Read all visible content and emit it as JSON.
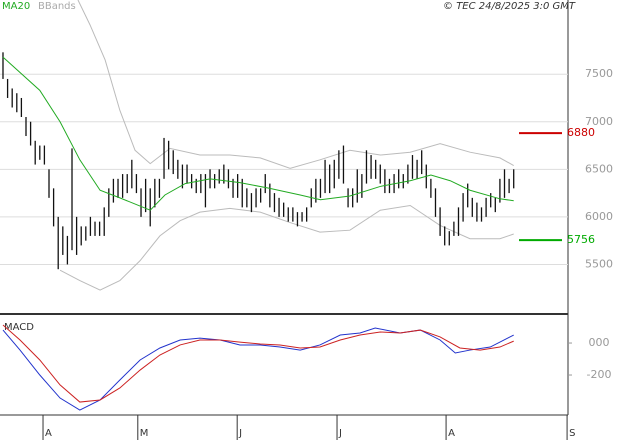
{
  "chart_data": [
    {
      "type": "range",
      "legend": [
        {
          "text": "MA20",
          "color": "#22aa22"
        },
        {
          "text": "BBands",
          "color": "#aaaaaa"
        }
      ],
      "source": "© TEC 24/8/2025 3:0 GMT",
      "xlim": [
        -0.65,
        122.8
      ],
      "ylim": [
        5000,
        8280
      ],
      "yticks": [
        5500,
        6000,
        6500,
        7000,
        7500
      ],
      "grid": true,
      "bar_color": "#111111",
      "highs": [
        7730,
        7450,
        7350,
        7300,
        7250,
        7050,
        7000,
        6800,
        6750,
        6750,
        6500,
        6300,
        6000,
        5900,
        5800,
        6720,
        6000,
        5900,
        5900,
        6000,
        5950,
        5950,
        6100,
        6300,
        6400,
        6400,
        6450,
        6450,
        6600,
        6450,
        6300,
        6400,
        6300,
        6400,
        6400,
        6830,
        6800,
        6700,
        6600,
        6550,
        6550,
        6450,
        6400,
        6450,
        6450,
        6500,
        6450,
        6500,
        6550,
        6500,
        6400,
        6450,
        6400,
        6300,
        6250,
        6300,
        6300,
        6450,
        6350,
        6250,
        6200,
        6150,
        6100,
        6100,
        6050,
        6050,
        6100,
        6300,
        6400,
        6400,
        6600,
        6550,
        6600,
        6700,
        6750,
        6300,
        6300,
        6500,
        6450,
        6700,
        6650,
        6600,
        6550,
        6500,
        6400,
        6450,
        6500,
        6450,
        6550,
        6650,
        6600,
        6700,
        6550,
        6400,
        6300,
        6100,
        5900,
        5850,
        5950,
        6100,
        6250,
        6350,
        6200,
        6150,
        6100,
        6200,
        6250,
        6200,
        6400,
        6500,
        6400,
        6500
      ],
      "lows": [
        7450,
        7250,
        7150,
        7100,
        7050,
        6850,
        6750,
        6550,
        6600,
        6550,
        6200,
        5900,
        5450,
        5600,
        5500,
        5650,
        5600,
        5700,
        5750,
        5800,
        5800,
        5800,
        5800,
        6000,
        6150,
        6200,
        6200,
        6250,
        6300,
        6250,
        6000,
        6050,
        5900,
        6100,
        6200,
        6400,
        6500,
        6450,
        6400,
        6300,
        6350,
        6300,
        6250,
        6250,
        6100,
        6300,
        6300,
        6350,
        6350,
        6300,
        6200,
        6200,
        6100,
        6100,
        6050,
        6100,
        6150,
        6250,
        6100,
        6050,
        6000,
        6000,
        5950,
        5950,
        5900,
        5950,
        5950,
        6100,
        6150,
        6200,
        6250,
        6250,
        6300,
        6400,
        6350,
        6100,
        6100,
        6150,
        6200,
        6350,
        6400,
        6400,
        6350,
        6250,
        6250,
        6250,
        6300,
        6300,
        6350,
        6400,
        6400,
        6450,
        6300,
        6200,
        6000,
        5800,
        5700,
        5700,
        5800,
        5800,
        5950,
        6100,
        6000,
        5950,
        5950,
        6000,
        6100,
        6050,
        6150,
        6200,
        6250,
        6300
      ],
      "series": [
        {
          "name": "MA20",
          "color": "#22aa22",
          "x": [
            0,
            8,
            12.4,
            16.7,
            21.1,
            25.4,
            32,
            35.2,
            39.6,
            45,
            51.5,
            58,
            64.6,
            69,
            75.4,
            82,
            88.5,
            93,
            97.2,
            101.5,
            108,
            111
          ],
          "values": [
            7680,
            7330,
            7000,
            6600,
            6280,
            6200,
            6070,
            6230,
            6350,
            6400,
            6360,
            6300,
            6230,
            6180,
            6220,
            6320,
            6380,
            6440,
            6380,
            6280,
            6190,
            6170
          ]
        }
      ],
      "bbands": {
        "color": "#bbbbbb",
        "upper": {
          "x": [
            16.3,
            18.9,
            22.2,
            25.4,
            28.7,
            32,
            36.3,
            42.8,
            49.3,
            55.9,
            62.4,
            68.9,
            75.4,
            82,
            88.5,
            95,
            101.5,
            108,
            111
          ],
          "values": [
            8280,
            8020,
            7650,
            7120,
            6700,
            6560,
            6720,
            6650,
            6650,
            6620,
            6510,
            6600,
            6700,
            6650,
            6680,
            6770,
            6680,
            6620,
            6540
          ]
        },
        "lower": {
          "x": [
            12.4,
            16.7,
            21.1,
            25.4,
            29.8,
            34.1,
            38.5,
            42.8,
            49.3,
            55.9,
            62.4,
            68.9,
            75.4,
            82,
            88.5,
            95,
            101.5,
            108,
            111
          ],
          "values": [
            5440,
            5330,
            5230,
            5330,
            5540,
            5800,
            5960,
            6050,
            6090,
            6050,
            5940,
            5840,
            5860,
            6070,
            6120,
            5910,
            5770,
            5770,
            5820
          ]
        }
      },
      "levels": [
        {
          "value": 6880,
          "color": "#cc0000"
        },
        {
          "value": 5756,
          "color": "#00aa00"
        }
      ]
    },
    {
      "type": "line",
      "title": "MACD",
      "xlim": [
        -0.65,
        122.8
      ],
      "ylim": [
        -450,
        169
      ],
      "yticks": [
        {
          "value": 0,
          "label": "000"
        },
        -200
      ],
      "xticks": [
        {
          "value": 8.7,
          "label": "A"
        },
        {
          "value": 29.3,
          "label": "M"
        },
        {
          "value": 50.9,
          "label": "J"
        },
        {
          "value": 72.6,
          "label": "J"
        },
        {
          "value": 96.3,
          "label": "A"
        },
        {
          "value": 122.6,
          "label": "S"
        }
      ],
      "series": [
        {
          "color": "#2233cc",
          "x": [
            0,
            3.7,
            8,
            12.4,
            16.7,
            21.1,
            25.4,
            29.8,
            34.1,
            38.5,
            42.8,
            47.2,
            51.5,
            55.9,
            60.2,
            64.6,
            68.9,
            73.3,
            77.6,
            80.9,
            86.3,
            90.7,
            95,
            98.3,
            101.5,
            105.9,
            111
          ],
          "values": [
            81,
            -44,
            -200,
            -344,
            -419,
            -356,
            -231,
            -106,
            -31,
            19,
            31,
            19,
            -12,
            -12,
            -25,
            -44,
            -12,
            50,
            63,
            94,
            63,
            81,
            19,
            -62,
            -44,
            -25,
            50
          ]
        },
        {
          "color": "#cc2222",
          "x": [
            0,
            3.7,
            8,
            12.4,
            16.7,
            21.1,
            25.4,
            29.8,
            34.1,
            38.5,
            42.8,
            47.2,
            51.5,
            55.9,
            60.2,
            64.6,
            68.9,
            73.3,
            77.6,
            82,
            86.3,
            90.7,
            95,
            99.3,
            103.7,
            108,
            111
          ],
          "values": [
            113,
            19,
            -106,
            -262,
            -369,
            -356,
            -281,
            -169,
            -75,
            -12,
            19,
            19,
            6,
            -6,
            -12,
            -31,
            -25,
            19,
            50,
            69,
            63,
            81,
            38,
            -31,
            -44,
            -25,
            12
          ]
        }
      ]
    }
  ]
}
